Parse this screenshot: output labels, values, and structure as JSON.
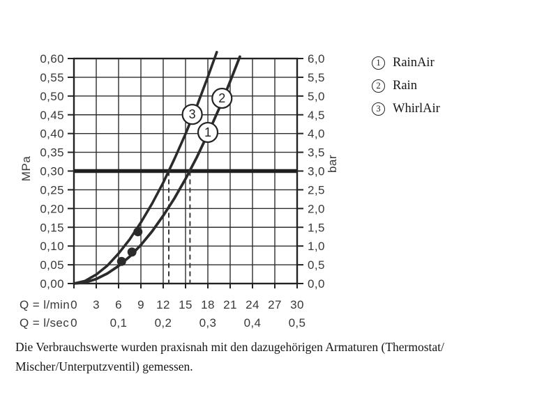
{
  "legend": {
    "items": [
      {
        "num": "1",
        "label": "RainAir"
      },
      {
        "num": "2",
        "label": "Rain"
      },
      {
        "num": "3",
        "label": "WhirlAir"
      }
    ]
  },
  "caption": {
    "line1": "Die Verbrauchswerte wurden praxisnah mit den dazugehörigen Armaturen (Thermostat/",
    "line2": "Mischer/Unterputzventil) gemessen."
  },
  "chart_data": {
    "type": "line",
    "title": "",
    "grid": true,
    "legend_position": "right",
    "xlim": [
      0,
      30
    ],
    "ylim_mpa": [
      0,
      0.6
    ],
    "ylim_bar": [
      0,
      6
    ],
    "y_axis_left": {
      "title": "MPa",
      "ticks": [
        {
          "p": 0.0,
          "label": "0,00"
        },
        {
          "p": 0.05,
          "label": "0,05"
        },
        {
          "p": 0.1,
          "label": "0,10"
        },
        {
          "p": 0.15,
          "label": "0,15"
        },
        {
          "p": 0.2,
          "label": "0,20"
        },
        {
          "p": 0.25,
          "label": "0,25"
        },
        {
          "p": 0.3,
          "label": "0,30"
        },
        {
          "p": 0.35,
          "label": "0,35"
        },
        {
          "p": 0.4,
          "label": "0,40"
        },
        {
          "p": 0.45,
          "label": "0,45"
        },
        {
          "p": 0.5,
          "label": "0,50"
        },
        {
          "p": 0.55,
          "label": "0,55"
        },
        {
          "p": 0.6,
          "label": "0,60"
        }
      ]
    },
    "y_axis_right": {
      "title": "bar",
      "ticks": [
        {
          "bar": 0.0,
          "label": "0,0"
        },
        {
          "bar": 0.5,
          "label": "0,5"
        },
        {
          "bar": 1.0,
          "label": "1,0"
        },
        {
          "bar": 1.5,
          "label": "1,5"
        },
        {
          "bar": 2.0,
          "label": "2,0"
        },
        {
          "bar": 2.5,
          "label": "2,5"
        },
        {
          "bar": 3.0,
          "label": "3,0"
        },
        {
          "bar": 3.5,
          "label": "3,5"
        },
        {
          "bar": 4.0,
          "label": "4,0"
        },
        {
          "bar": 4.5,
          "label": "4,5"
        },
        {
          "bar": 5.0,
          "label": "5,0"
        },
        {
          "bar": 5.5,
          "label": "5,5"
        },
        {
          "bar": 6.0,
          "label": "6,0"
        }
      ]
    },
    "x_axis_rows": [
      {
        "caption": "Q = l/min",
        "ticks": [
          {
            "q": 0,
            "label": "0"
          },
          {
            "q": 3,
            "label": "3"
          },
          {
            "q": 6,
            "label": "6"
          },
          {
            "q": 9,
            "label": "9"
          },
          {
            "q": 12,
            "label": "12"
          },
          {
            "q": 15,
            "label": "15"
          },
          {
            "q": 18,
            "label": "18"
          },
          {
            "q": 21,
            "label": "21"
          },
          {
            "q": 24,
            "label": "24"
          },
          {
            "q": 27,
            "label": "27"
          },
          {
            "q": 30,
            "label": "30"
          }
        ]
      },
      {
        "caption": "Q = l/sec",
        "ticks": [
          {
            "q": 0,
            "label": "0"
          },
          {
            "q": 6,
            "label": "0,1"
          },
          {
            "q": 12,
            "label": "0,2"
          },
          {
            "q": 18,
            "label": "0,3"
          },
          {
            "q": 24,
            "label": "0,4"
          },
          {
            "q": 30,
            "label": "0,5"
          }
        ]
      }
    ],
    "series": [
      {
        "name": "RainAir",
        "curve_label": "1",
        "label_pos": {
          "q": 18.0,
          "p": 0.403
        },
        "points": [
          [
            0,
            0
          ],
          [
            1.5,
            0.003
          ],
          [
            3,
            0.012
          ],
          [
            4.5,
            0.027
          ],
          [
            6,
            0.047
          ],
          [
            7.5,
            0.072
          ],
          [
            9,
            0.103
          ],
          [
            10.5,
            0.139
          ],
          [
            12,
            0.181
          ],
          [
            13.5,
            0.227
          ],
          [
            15,
            0.279
          ],
          [
            16.5,
            0.336
          ],
          [
            18,
            0.399
          ],
          [
            19.5,
            0.466
          ],
          [
            21,
            0.539
          ],
          [
            22.3,
            0.605
          ]
        ]
      },
      {
        "name": "Rain",
        "curve_label": "2",
        "label_pos": {
          "q": 19.9,
          "p": 0.494
        },
        "points": [
          [
            0,
            0
          ],
          [
            1.5,
            0.003
          ],
          [
            3,
            0.012
          ],
          [
            4.5,
            0.027
          ],
          [
            6,
            0.047
          ],
          [
            7.5,
            0.072
          ],
          [
            9,
            0.103
          ],
          [
            10.5,
            0.139
          ],
          [
            12,
            0.181
          ],
          [
            13.5,
            0.227
          ],
          [
            15,
            0.279
          ],
          [
            16.5,
            0.336
          ],
          [
            18,
            0.399
          ],
          [
            19.5,
            0.466
          ],
          [
            21,
            0.539
          ],
          [
            22.3,
            0.605
          ]
        ]
      },
      {
        "name": "WhirlAir",
        "curve_label": "3",
        "label_pos": {
          "q": 15.9,
          "p": 0.451
        },
        "points": [
          [
            0,
            0
          ],
          [
            1.5,
            0.007
          ],
          [
            3,
            0.024
          ],
          [
            4.5,
            0.048
          ],
          [
            6,
            0.08
          ],
          [
            7.5,
            0.118
          ],
          [
            9,
            0.163
          ],
          [
            10.5,
            0.213
          ],
          [
            12,
            0.269
          ],
          [
            13.5,
            0.332
          ],
          [
            15,
            0.399
          ],
          [
            16.5,
            0.472
          ],
          [
            18,
            0.551
          ],
          [
            19.2,
            0.617
          ]
        ]
      }
    ],
    "operating_points": [
      {
        "q": 6.4,
        "p": 0.059
      },
      {
        "q": 7.8,
        "p": 0.084
      },
      {
        "q": 8.6,
        "p": 0.138
      }
    ],
    "reference_pressure_line": {
      "p": 0.3
    },
    "flow_at_reference": [
      {
        "q": 12.75
      },
      {
        "q": 15.6
      }
    ],
    "colors": {
      "ink": "#2b2b2b",
      "grid": "#2d2d2d",
      "dashed": "#3a3a3a",
      "background": "#ffffff"
    }
  }
}
